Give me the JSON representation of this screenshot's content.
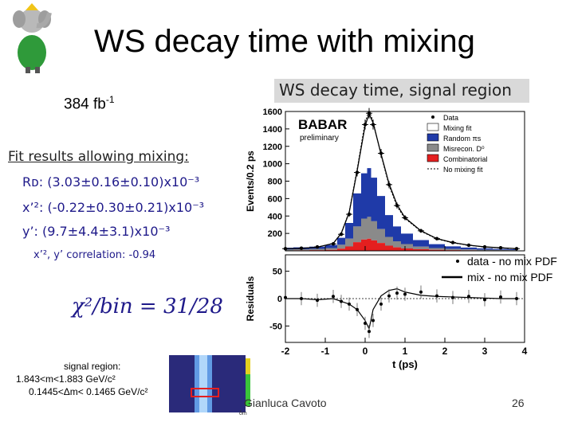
{
  "slide": {
    "title": "WS decay time with mixing",
    "luminosity": "384 fb",
    "luminosity_exp": "-1",
    "footer_author": "Gianluca Cavoto",
    "page_number": "26",
    "mascot_icon": "babar-elephant-icon"
  },
  "fit_results": {
    "header": "Fit results allowing mixing:",
    "rd": "Rᴅ:  (3.03±0.16±0.10)x10⁻³",
    "x2": "x’²:  (-0.22±0.30±0.21)x10⁻³",
    "y": "y’:   (9.7±4.4±3.1)x10⁻³",
    "correlation": "x’², y’ correlation: -0.94",
    "chi2": "χ²/bin = 31/28"
  },
  "signal_region": {
    "title": "signal region:",
    "mass_range": "1.843<m<1.883 GeV/c²",
    "dm_range": "0.1445<Δm< 0.1465 GeV/c²"
  },
  "chart_data": {
    "type": "line",
    "title": "WS decay time, signal region",
    "experiment": "BABAR",
    "experiment_note": "preliminary",
    "xlabel": "t (ps)",
    "ylabel_top": "Events/0.2 ps",
    "ylabel_bottom": "Residuals",
    "xlim": [
      -2,
      4
    ],
    "ylim_top": [
      0,
      1600
    ],
    "ylim_bottom": [
      -80,
      80
    ],
    "x_ticks": [
      -2,
      -1,
      0,
      1,
      2,
      3,
      4
    ],
    "y_ticks_top": [
      200,
      400,
      600,
      800,
      1000,
      1200,
      1400,
      1600
    ],
    "y_ticks_bottom": [
      -50,
      0,
      50
    ],
    "legend": [
      "Data",
      "Mixing fit",
      "Random πs",
      "Misrecon. D⁰",
      "Combinatorial",
      "No mixing fit"
    ],
    "legend_bottom": [
      "data - no mix PDF",
      "mix - no mix PDF"
    ],
    "colors": {
      "random": "#1f3aa8",
      "misrecon": "#8a8a8a",
      "combinatorial": "#e41f1f"
    },
    "x": [
      -2.0,
      -1.6,
      -1.2,
      -0.8,
      -0.6,
      -0.4,
      -0.2,
      0.0,
      0.1,
      0.2,
      0.4,
      0.6,
      0.8,
      1.0,
      1.4,
      1.8,
      2.2,
      2.6,
      3.0,
      3.4,
      3.8
    ],
    "data": [
      25,
      30,
      45,
      80,
      190,
      420,
      900,
      1450,
      1580,
      1450,
      1120,
      760,
      520,
      380,
      230,
      140,
      95,
      65,
      45,
      35,
      25
    ],
    "mixing_fit": [
      25,
      28,
      42,
      85,
      200,
      440,
      920,
      1440,
      1570,
      1470,
      1110,
      770,
      530,
      380,
      230,
      140,
      95,
      65,
      45,
      35,
      25
    ],
    "no_mixing_fit": [
      25,
      28,
      42,
      85,
      205,
      450,
      940,
      1480,
      1610,
      1490,
      1100,
      750,
      510,
      370,
      225,
      135,
      92,
      63,
      44,
      34,
      25
    ],
    "random_bkg": [
      20,
      22,
      25,
      35,
      80,
      180,
      380,
      520,
      560,
      500,
      380,
      250,
      170,
      120,
      75,
      45,
      30,
      22,
      16,
      12,
      10
    ],
    "misrecon_bkg": [
      10,
      12,
      15,
      20,
      45,
      90,
      180,
      240,
      250,
      220,
      160,
      100,
      70,
      50,
      30,
      20,
      14,
      10,
      8,
      6,
      5
    ],
    "combinatorial_bkg": [
      5,
      6,
      8,
      12,
      25,
      50,
      100,
      130,
      140,
      120,
      90,
      60,
      40,
      28,
      18,
      12,
      8,
      6,
      5,
      4,
      3
    ],
    "residual_data": [
      2,
      0,
      -3,
      4,
      -5,
      -10,
      -20,
      -45,
      -60,
      -40,
      -10,
      5,
      10,
      8,
      12,
      5,
      2,
      4,
      -2,
      3,
      0
    ],
    "residual_mix": [
      0,
      0,
      -2,
      0,
      -5,
      -10,
      -20,
      -40,
      -55,
      -20,
      5,
      15,
      18,
      12,
      6,
      4,
      3,
      2,
      1,
      0,
      0
    ]
  },
  "thumbnail": {
    "scale_label": "δm",
    "colors": {
      "bg": "#2a2a7a",
      "band": "#6fb7ff",
      "box": "#e41f1f"
    }
  }
}
